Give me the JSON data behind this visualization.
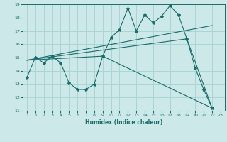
{
  "xlabel": "Humidex (Indice chaleur)",
  "bg_color": "#cce8e8",
  "line_color": "#1a6b6b",
  "grid_color": "#aad4d4",
  "xlim": [
    -0.5,
    23.5
  ],
  "ylim": [
    11,
    19
  ],
  "xticks": [
    0,
    1,
    2,
    3,
    4,
    5,
    6,
    7,
    8,
    9,
    10,
    11,
    12,
    13,
    14,
    15,
    16,
    17,
    18,
    19,
    20,
    21,
    22,
    23
  ],
  "yticks": [
    11,
    12,
    13,
    14,
    15,
    16,
    17,
    18,
    19
  ],
  "series1_x": [
    0,
    1,
    2,
    3,
    4,
    5,
    6,
    7,
    8,
    9,
    10,
    11,
    12,
    13,
    14,
    15,
    16,
    17,
    18,
    19,
    20,
    21,
    22
  ],
  "series1_y": [
    13.5,
    15.0,
    14.6,
    15.1,
    14.6,
    13.1,
    12.6,
    12.6,
    13.0,
    15.1,
    16.5,
    17.1,
    18.7,
    17.0,
    18.2,
    17.6,
    18.1,
    18.9,
    18.2,
    16.4,
    14.2,
    12.6,
    11.2
  ],
  "series2_x": [
    0,
    22
  ],
  "series2_y": [
    14.8,
    17.4
  ],
  "series3_x": [
    0,
    9,
    22
  ],
  "series3_y": [
    14.8,
    15.1,
    11.2
  ],
  "series4_x": [
    0,
    19,
    22
  ],
  "series4_y": [
    14.8,
    16.4,
    11.2
  ]
}
